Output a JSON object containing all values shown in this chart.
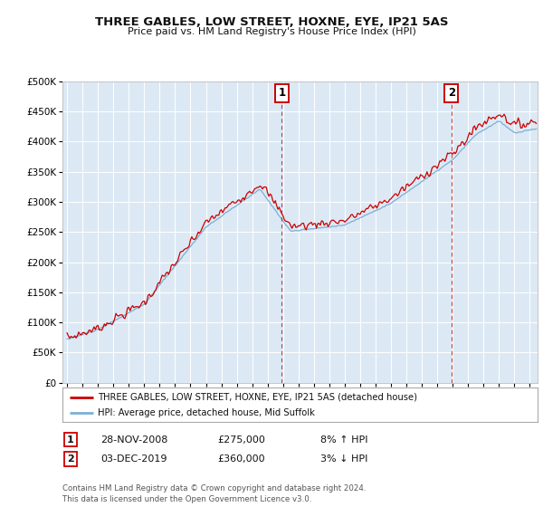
{
  "title": "THREE GABLES, LOW STREET, HOXNE, EYE, IP21 5AS",
  "subtitle": "Price paid vs. HM Land Registry's House Price Index (HPI)",
  "background_color": "#ffffff",
  "plot_bg_color": "#dce9f5",
  "grid_color": "#ffffff",
  "red_line_color": "#cc0000",
  "blue_line_color": "#7ab0d4",
  "legend_line1": "THREE GABLES, LOW STREET, HOXNE, EYE, IP21 5AS (detached house)",
  "legend_line2": "HPI: Average price, detached house, Mid Suffolk",
  "footer": "Contains HM Land Registry data © Crown copyright and database right 2024.\nThis data is licensed under the Open Government Licence v3.0.",
  "ylim": [
    0,
    500000
  ],
  "yticks": [
    0,
    50000,
    100000,
    150000,
    200000,
    250000,
    300000,
    350000,
    400000,
    450000,
    500000
  ],
  "year_start": 1995,
  "year_end": 2025,
  "marker1_t": 2008.917,
  "marker2_t": 2019.917,
  "ann1_date": "28-NOV-2008",
  "ann1_price": "£275,000",
  "ann1_hpi": "8% ↑ HPI",
  "ann2_date": "03-DEC-2019",
  "ann2_price": "£360,000",
  "ann2_hpi": "3% ↓ HPI"
}
